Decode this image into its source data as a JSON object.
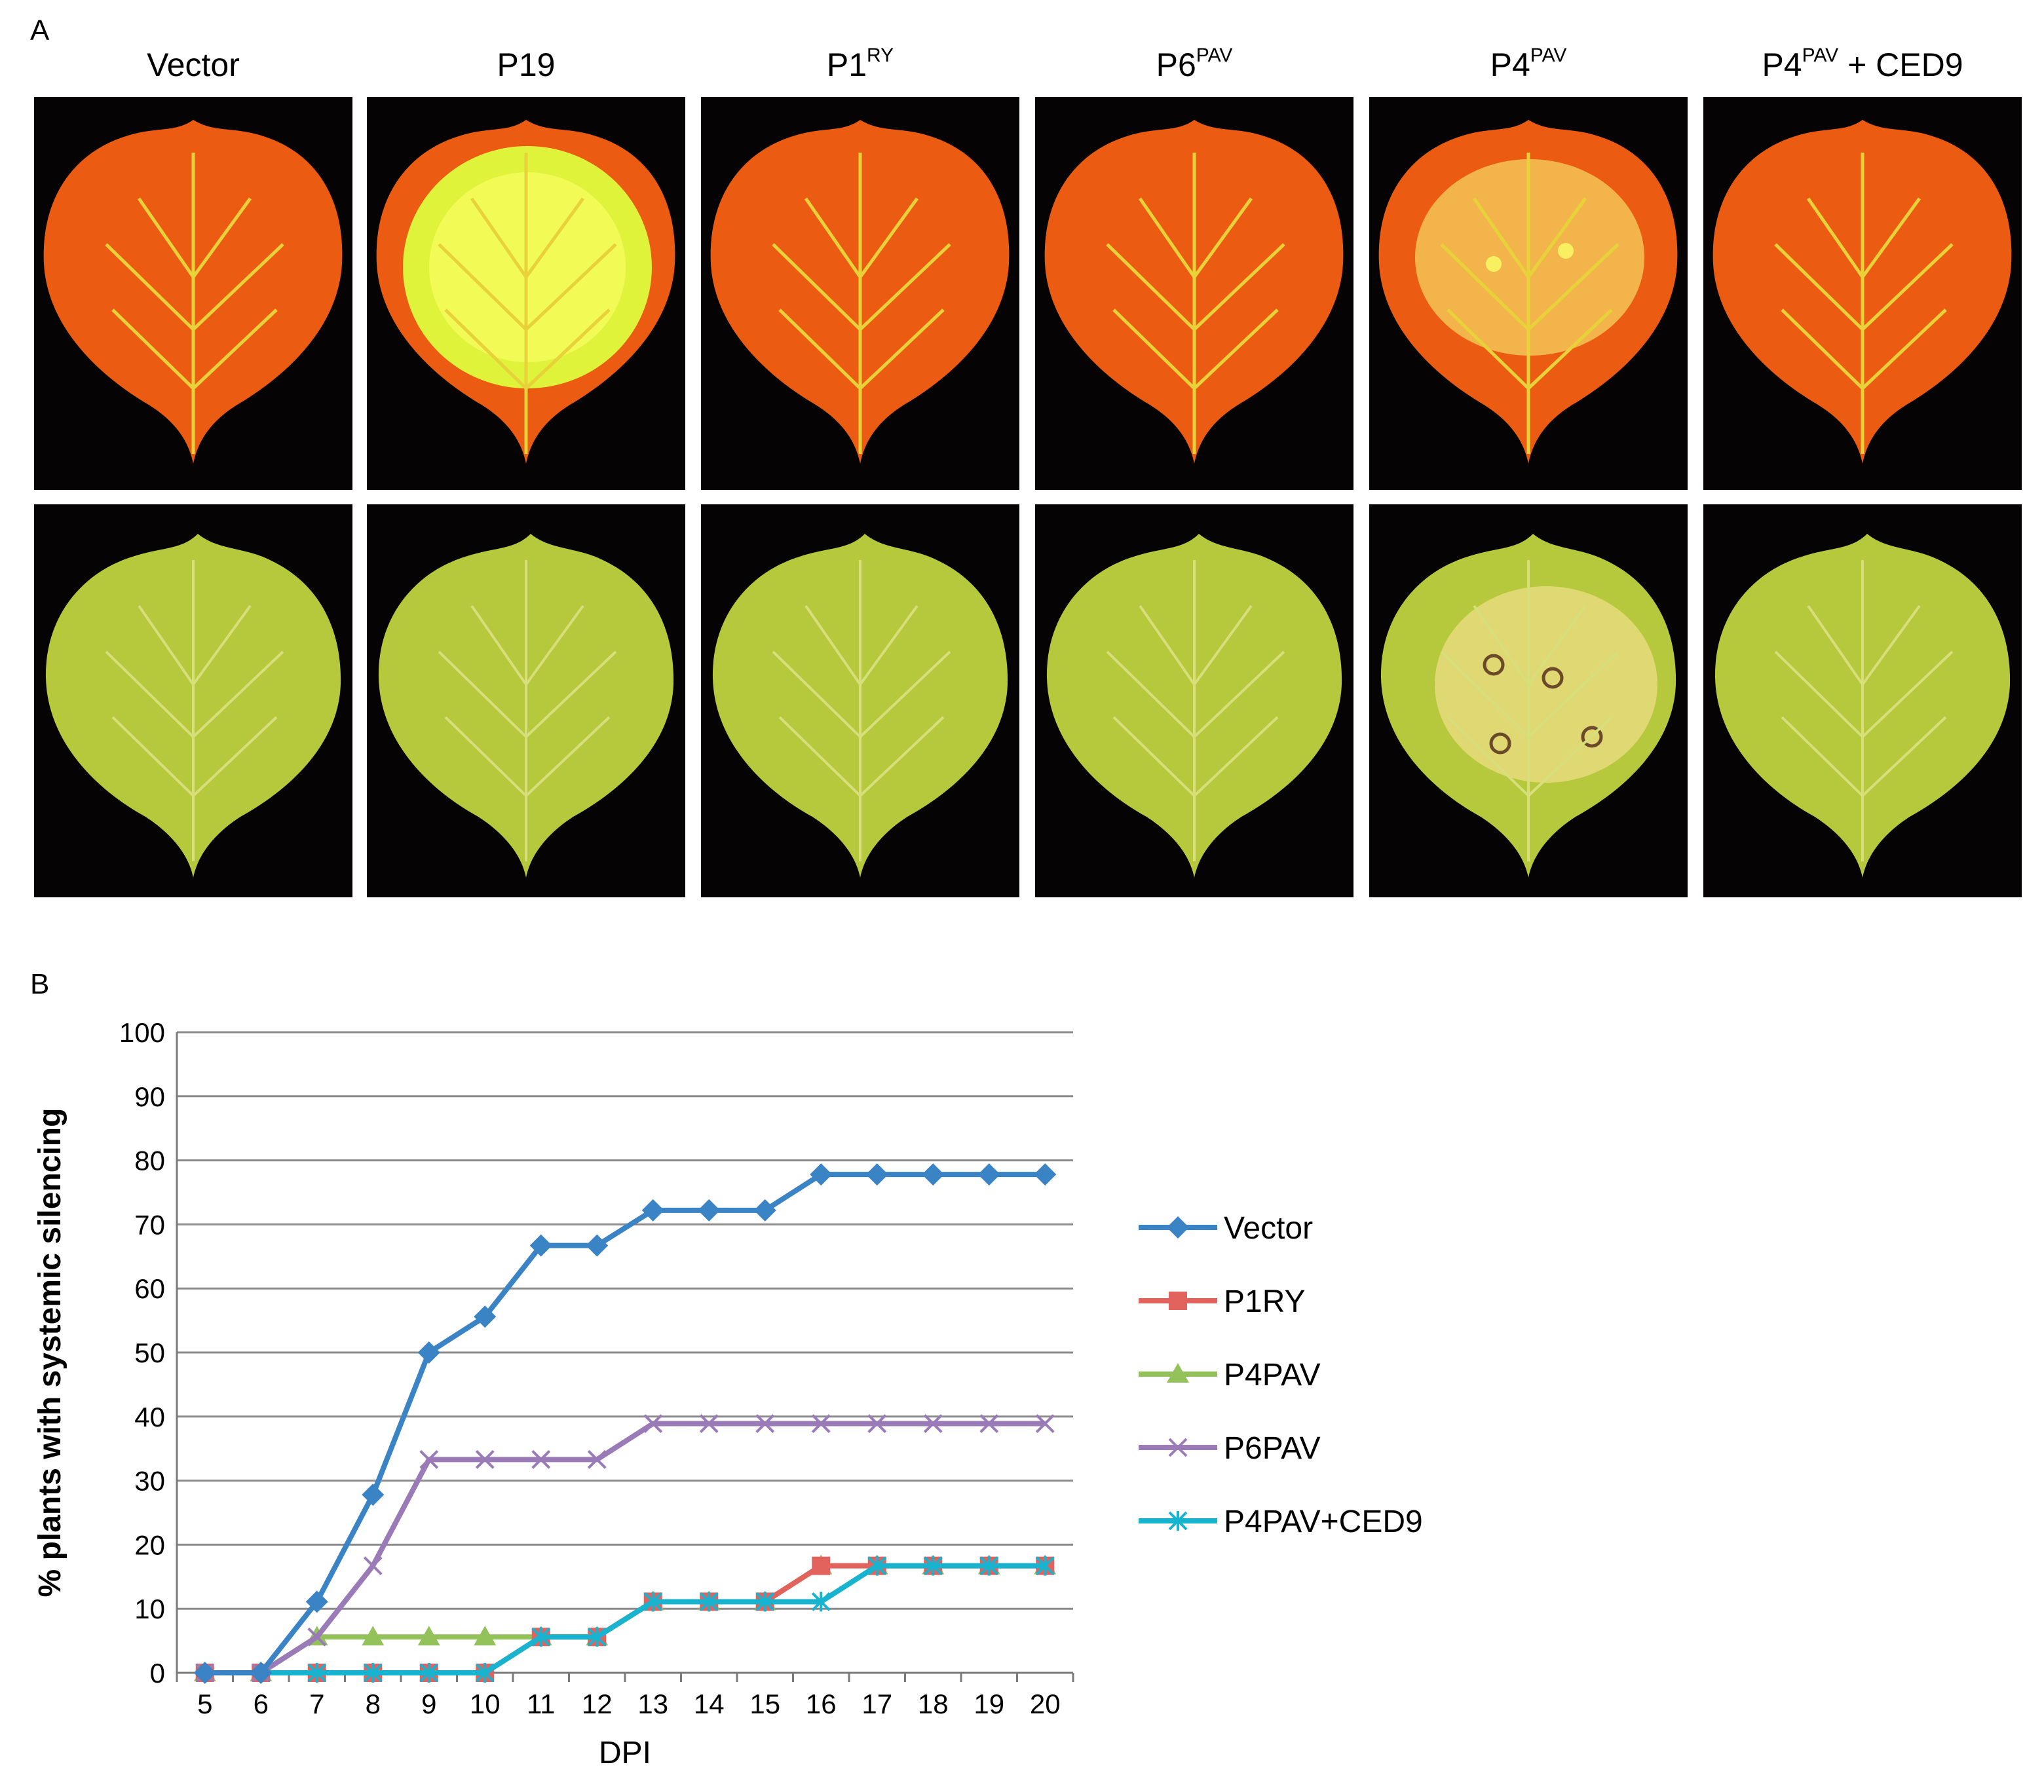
{
  "panel_a": {
    "letter": "A",
    "columns": [
      {
        "base": "Vector",
        "sup": "",
        "rest": ""
      },
      {
        "base": "P19",
        "sup": "",
        "rest": ""
      },
      {
        "base": "P1",
        "sup": "RY",
        "rest": ""
      },
      {
        "base": "P6",
        "sup": "PAV",
        "rest": ""
      },
      {
        "base": "P4",
        "sup": "PAV",
        "rest": ""
      },
      {
        "base": "P4",
        "sup": "PAV",
        "rest": " + CED9"
      }
    ]
  },
  "panel_b": {
    "letter": "B"
  },
  "colors": {
    "Vector": "#3a83c4",
    "P1RY": "#e2625d",
    "P4PAV": "#94c25a",
    "P6PAV": "#9a7bb8",
    "P4PAV+CED9": "#17b3cf"
  },
  "chart_data": {
    "type": "line",
    "xlabel": "DPI",
    "ylabel": "% plants with systemic silencing",
    "ylim": [
      0,
      100
    ],
    "yticks": [
      0,
      10,
      20,
      30,
      40,
      50,
      60,
      70,
      80,
      90,
      100
    ],
    "x": [
      5,
      6,
      7,
      8,
      9,
      10,
      11,
      12,
      13,
      14,
      15,
      16,
      17,
      18,
      19,
      20
    ],
    "grid": true,
    "legend_position": "right",
    "series": [
      {
        "name": "Vector",
        "marker": "diamond",
        "values": [
          0,
          0,
          11.1,
          27.8,
          50,
          55.6,
          66.7,
          66.7,
          72.2,
          72.2,
          72.2,
          77.8,
          77.8,
          77.8,
          77.8,
          77.8
        ]
      },
      {
        "name": "P1RY",
        "marker": "square",
        "values": [
          0,
          0,
          0,
          0,
          0,
          0,
          5.6,
          5.6,
          11.1,
          11.1,
          11.1,
          16.7,
          16.7,
          16.7,
          16.7,
          16.7
        ]
      },
      {
        "name": "P4PAV",
        "marker": "triangle",
        "values": [
          0,
          0,
          5.6,
          5.6,
          5.6,
          5.6,
          5.6,
          5.6,
          11.1,
          11.1,
          11.1,
          16.7,
          16.7,
          16.7,
          16.7,
          16.7
        ]
      },
      {
        "name": "P6PAV",
        "marker": "x",
        "values": [
          0,
          0,
          5.6,
          16.7,
          33.3,
          33.3,
          33.3,
          33.3,
          38.9,
          38.9,
          38.9,
          38.9,
          38.9,
          38.9,
          38.9,
          38.9
        ]
      },
      {
        "name": "P4PAV+CED9",
        "marker": "asterisk",
        "values": [
          0,
          0,
          0,
          0,
          0,
          0,
          5.6,
          5.6,
          11.1,
          11.1,
          11.1,
          11.1,
          16.7,
          16.7,
          16.7,
          16.7
        ]
      }
    ]
  }
}
